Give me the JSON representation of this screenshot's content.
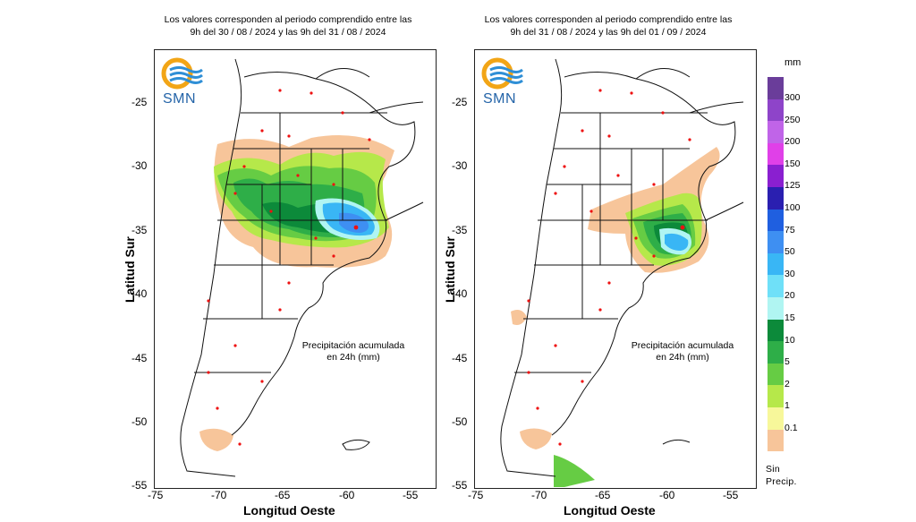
{
  "panels": [
    {
      "title_line1": "Los valores corresponden al periodo comprendido entre las",
      "title_line2": "9h del 30 / 08 / 2024  y las 9h del 31 / 08 / 2024",
      "note_line1": "Precipitación acumulada",
      "note_line2": "en 24h (mm)"
    },
    {
      "title_line1": "Los valores corresponden al periodo comprendido entre las",
      "title_line2": "9h del 31 / 08 / 2024  y las 9h del 01 / 09 / 2024",
      "note_line1": "Precipitación acumulada",
      "note_line2": "en 24h (mm)"
    }
  ],
  "axes": {
    "x_title": "Longitud Oeste",
    "y_title": "Latitud Sur",
    "x_ticks": [
      "-75",
      "-70",
      "-65",
      "-60",
      "-55"
    ],
    "y_ticks": [
      "-25",
      "-30",
      "-35",
      "-40",
      "-45",
      "-50",
      "-55"
    ]
  },
  "logo": {
    "text": "SMN",
    "icon": "smn-sun-waves-icon"
  },
  "legend": {
    "unit": "mm",
    "entries": [
      {
        "label": "300",
        "color": "#6a3d9a"
      },
      {
        "label": "250",
        "color": "#8e44c9"
      },
      {
        "label": "200",
        "color": "#c064e8"
      },
      {
        "label": "150",
        "color": "#e040e8"
      },
      {
        "label": "125",
        "color": "#8a1fd0"
      },
      {
        "label": "100",
        "color": "#2a1fb0"
      },
      {
        "label": "75",
        "color": "#1f5fe0"
      },
      {
        "label": "50",
        "color": "#3e8ff2"
      },
      {
        "label": "30",
        "color": "#39b6f5"
      },
      {
        "label": "20",
        "color": "#6fe0f8"
      },
      {
        "label": "15",
        "color": "#b0f5f2"
      },
      {
        "label": "10",
        "color": "#0c8a3a"
      },
      {
        "label": "5",
        "color": "#2eae48"
      },
      {
        "label": "2",
        "color": "#66cc44"
      },
      {
        "label": "1",
        "color": "#b6e84a"
      },
      {
        "label": "0.1",
        "color": "#f7f79a"
      }
    ],
    "no_precip_color": "#f7c59a",
    "no_precip_line1": "Sin",
    "no_precip_line2": "Precip."
  }
}
